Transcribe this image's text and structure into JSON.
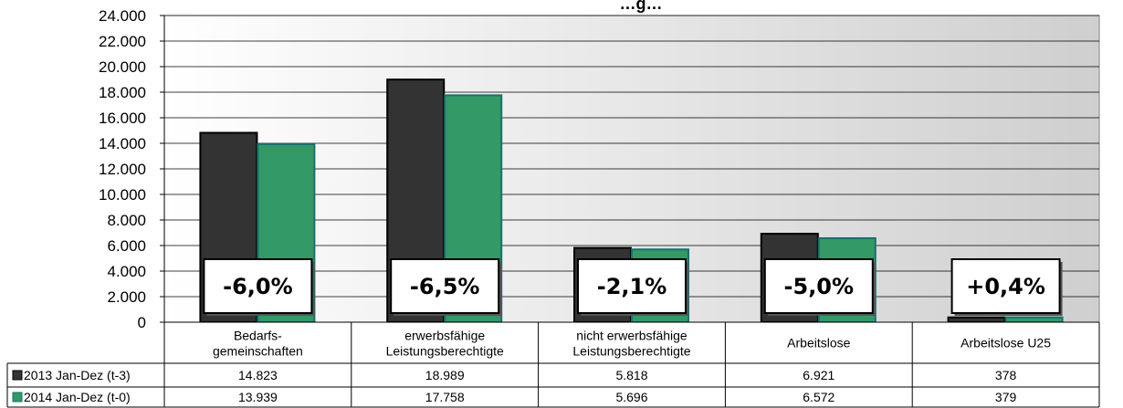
{
  "chart_data": {
    "type": "bar",
    "title": "…g…",
    "categories": [
      [
        "Bedarfs-",
        "gemeinschaften"
      ],
      [
        "erwerbsfähige",
        "Leistungsberechtigte"
      ],
      [
        "nicht erwerbsfähige",
        "Leistungsberechtigte"
      ],
      [
        "Arbeitslose"
      ],
      [
        "Arbeitslose U25"
      ]
    ],
    "series": [
      {
        "name": "2013 Jan-Dez (t-3)",
        "color": "#333333",
        "values": [
          14823,
          18989,
          5818,
          6921,
          378
        ],
        "labels": [
          "14.823",
          "18.989",
          "5.818",
          "6.921",
          "378"
        ]
      },
      {
        "name": "2014 Jan-Dez (t-0)",
        "color": "#339966",
        "values": [
          13939,
          17758,
          5696,
          6572,
          379
        ],
        "labels": [
          "13.939",
          "17.758",
          "5.696",
          "6.572",
          "379"
        ]
      }
    ],
    "changes": [
      "-6,0%",
      "-6,5%",
      "-2,1%",
      "-5,0%",
      "+0,4%"
    ],
    "ylim": [
      0,
      24000
    ],
    "yticks": [
      "0",
      "2.000",
      "4.000",
      "6.000",
      "8.000",
      "10.000",
      "12.000",
      "14.000",
      "16.000",
      "18.000",
      "20.000",
      "22.000",
      "24.000"
    ],
    "grid": true,
    "legend": "data-table"
  }
}
